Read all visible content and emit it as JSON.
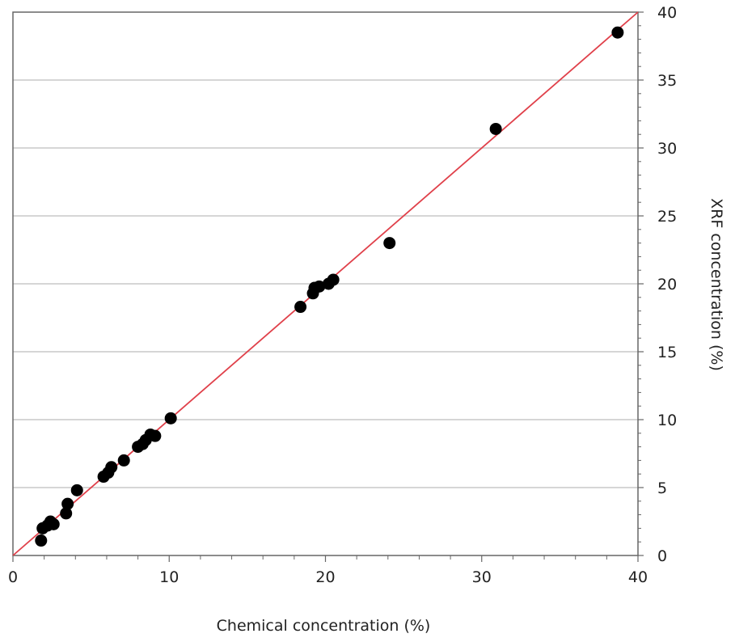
{
  "chart_data": {
    "type": "scatter",
    "title": "",
    "xlabel": "Chemical concentration (%)",
    "ylabel": "XRF concentration (%)",
    "xlim": [
      0,
      40
    ],
    "ylim": [
      0,
      40
    ],
    "x_ticks": [
      "0",
      "10",
      "20",
      "30",
      "40"
    ],
    "y_ticks": [
      "0",
      "5",
      "10",
      "15",
      "20",
      "25",
      "30",
      "35",
      "40"
    ],
    "y_axis_position": "right",
    "grid": "horizontal",
    "legend": "none",
    "colors": {
      "points": "#000000",
      "fit_line": "#e0404a",
      "grid": "#c8c8c8",
      "axis": "#666666"
    },
    "series": [
      {
        "x": [
          1.8,
          1.9,
          2.2,
          2.4,
          2.6,
          3.4,
          3.5,
          4.1,
          5.8,
          6.1,
          6.3,
          7.1,
          8.0,
          8.3,
          8.5,
          8.8,
          9.1,
          10.1,
          18.4,
          19.2,
          19.3,
          19.6,
          20.2,
          20.5,
          24.1,
          30.9,
          38.7
        ],
        "y": [
          1.1,
          2.0,
          2.2,
          2.5,
          2.3,
          3.1,
          3.8,
          4.8,
          5.8,
          6.1,
          6.5,
          7.0,
          8.0,
          8.2,
          8.5,
          8.9,
          8.8,
          10.1,
          18.3,
          19.3,
          19.7,
          19.8,
          20.0,
          20.3,
          23.0,
          31.4,
          38.5
        ]
      }
    ],
    "fit_line": {
      "x": [
        0,
        40
      ],
      "y": [
        0,
        40
      ]
    }
  }
}
